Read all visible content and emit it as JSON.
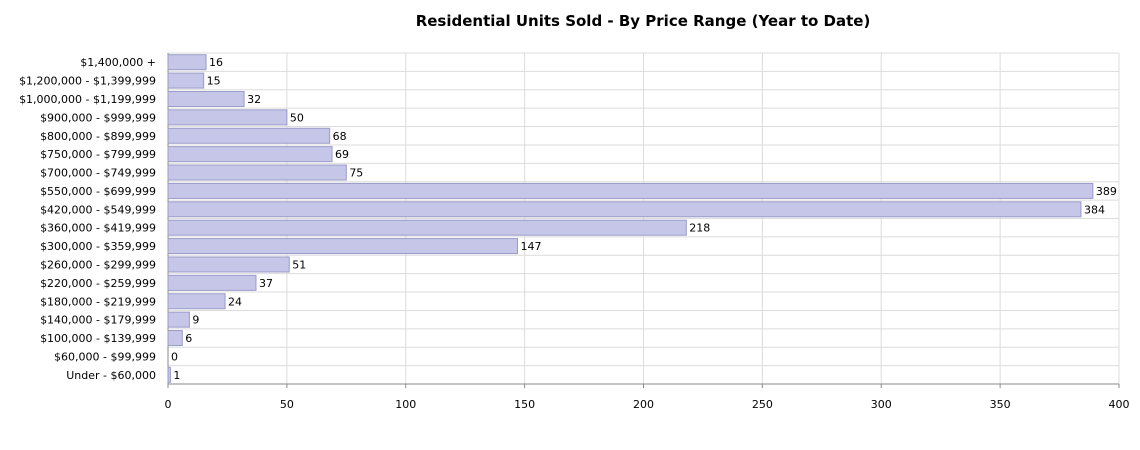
{
  "chart_data": {
    "type": "bar",
    "orientation": "horizontal",
    "title": "Residential Units Sold - By Price Range (Year to Date)",
    "xlabel": "",
    "ylabel": "",
    "xlim": [
      0,
      400
    ],
    "xticks": [
      "0",
      "50",
      "100",
      "150",
      "200",
      "250",
      "300",
      "350",
      "400"
    ],
    "grid": true,
    "categories": [
      "$1,400,000 +",
      "$1,200,000 - $1,399,999",
      "$1,000,000 - $1,199,999",
      "$900,000 - $999,999",
      "$800,000 - $899,999",
      "$750,000 - $799,999",
      "$700,000 - $749,999",
      "$550,000 - $699,999",
      "$420,000 - $549,999",
      "$360,000 - $419,999",
      "$300,000 - $359,999",
      "$260,000 - $299,999",
      "$220,000 - $259,999",
      "$180,000 - $219,999",
      "$140,000 - $179,999",
      "$100,000 - $139,999",
      "$60,000 - $99,999",
      "Under - $60,000"
    ],
    "values": [
      16,
      15,
      32,
      50,
      68,
      69,
      75,
      389,
      384,
      218,
      147,
      51,
      37,
      24,
      9,
      6,
      0,
      1
    ],
    "colors": {
      "bar_fill": "#c5c6e8",
      "bar_stroke": "#9a9bc8",
      "grid": "#dcdcdc",
      "axis": "#888888"
    }
  }
}
